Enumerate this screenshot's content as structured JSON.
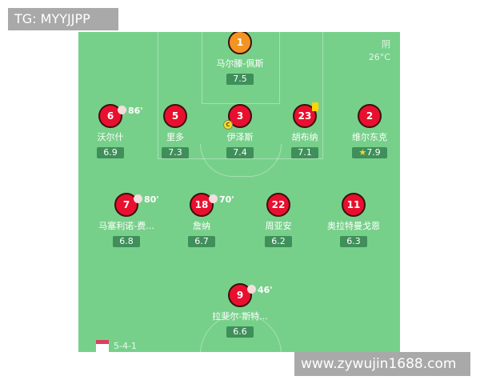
{
  "watermark_top": "TG: MYYJJPP",
  "watermark_bottom": "www.zywujin1688.com",
  "weather": {
    "condition": "阴",
    "temperature": "26°C"
  },
  "formation": "5-4-1",
  "colors": {
    "pitch": "#77d08a",
    "outfield": "#e8102e",
    "goalkeeper": "#f39422",
    "rating_bg": "#3f8f5a"
  },
  "players": [
    {
      "number": "1",
      "name": "马尔滕-佩斯",
      "rating": "7.5"
    },
    {
      "number": "6",
      "name": "沃尔什",
      "rating": "6.9",
      "sub": "86'"
    },
    {
      "number": "5",
      "name": "里多",
      "rating": "7.3"
    },
    {
      "number": "3",
      "name": "伊泽斯",
      "rating": "7.4",
      "captain": "C"
    },
    {
      "number": "23",
      "name": "胡布纳",
      "rating": "7.1",
      "yellow_card": true
    },
    {
      "number": "2",
      "name": "维尔东克",
      "rating": "7.9",
      "star": true
    },
    {
      "number": "7",
      "name": "马塞利诺-费...",
      "rating": "6.8",
      "sub": "80'"
    },
    {
      "number": "18",
      "name": "詹纳",
      "rating": "6.7",
      "sub": "70'"
    },
    {
      "number": "22",
      "name": "周亚安",
      "rating": "6.2"
    },
    {
      "number": "11",
      "name": "奥拉特曼戈恩",
      "rating": "6.3"
    },
    {
      "number": "9",
      "name": "拉斐尔-斯特...",
      "rating": "6.6",
      "sub": "46'"
    }
  ]
}
